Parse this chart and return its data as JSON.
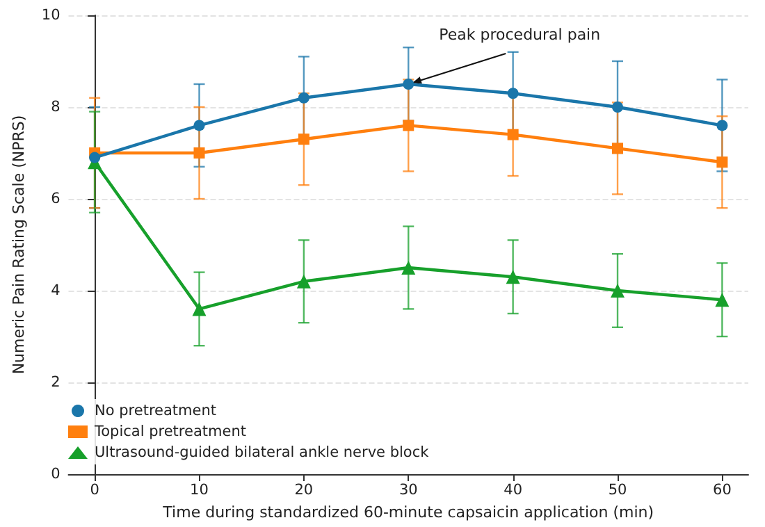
{
  "chart_data": {
    "type": "line",
    "xlabel": "Time during standardized 60-minute capsaicin application (min)",
    "ylabel": "Numeric Pain Rating Scale (NPRS)",
    "x": [
      0,
      10,
      20,
      30,
      40,
      50,
      60
    ],
    "series": [
      {
        "name": "No pretreatment",
        "color": "#1a76aa",
        "marker": "circle",
        "values": [
          6.9,
          7.6,
          8.2,
          8.5,
          8.3,
          8.0,
          7.6
        ],
        "errors": [
          1.1,
          0.9,
          0.9,
          0.8,
          0.9,
          1.0,
          1.0
        ]
      },
      {
        "name": "Topical pretreatment",
        "color": "#ff7f0e",
        "marker": "square",
        "values": [
          7.0,
          7.0,
          7.3,
          7.6,
          7.4,
          7.1,
          6.8
        ],
        "errors": [
          1.2,
          1.0,
          1.0,
          1.0,
          0.9,
          1.0,
          1.0
        ]
      },
      {
        "name": "Ultrasound-guided bilateral ankle nerve block",
        "color": "#17a02b",
        "marker": "triangle",
        "values": [
          6.8,
          3.6,
          4.2,
          4.5,
          4.3,
          4.0,
          3.8
        ],
        "errors": [
          1.1,
          0.8,
          0.9,
          0.9,
          0.8,
          0.8,
          0.8
        ]
      }
    ],
    "xlim": [
      -2.5,
      62.5
    ],
    "xticks": [
      0,
      10,
      20,
      30,
      40,
      50,
      60
    ],
    "ylim": [
      0,
      10
    ],
    "yticks": [
      0,
      2,
      4,
      6,
      8,
      10
    ],
    "grid": "y",
    "legend": "bottom left",
    "line_style": "solid",
    "annotations": [
      {
        "text": "Peak procedural pain",
        "x": 30,
        "y": 8.5
      }
    ]
  }
}
